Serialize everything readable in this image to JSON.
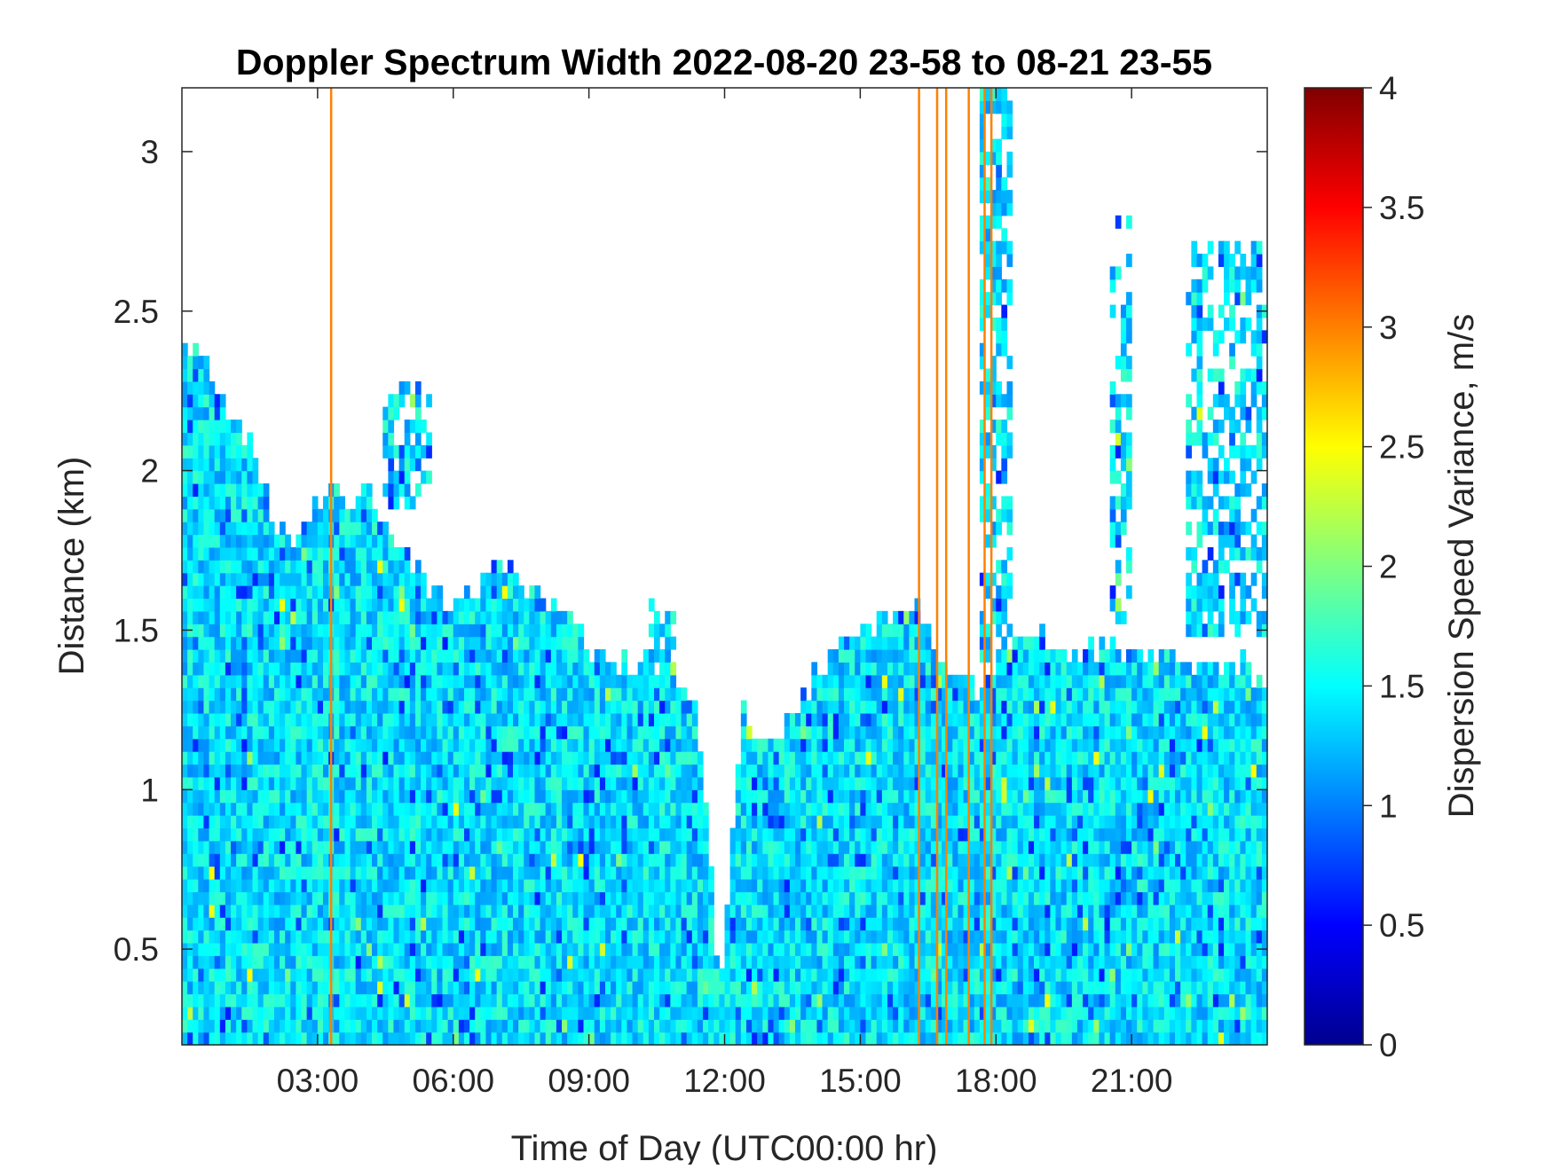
{
  "chart_data": {
    "type": "heatmap",
    "title": "Doppler Spectrum Width 2022-08-20 23-58 to 08-21 23-55",
    "xlabel": "Time of Day (UTC00:00 hr)",
    "ylabel": "Distance (km)",
    "colorbar_label": "Dispersion Speed Variance, m/s",
    "colormap": "jet",
    "xlim_hours": [
      0,
      24
    ],
    "ylim_km": [
      0.2,
      3.2
    ],
    "clim": [
      0,
      4
    ],
    "x_ticks": [
      {
        "value": 3,
        "label": "03:00"
      },
      {
        "value": 6,
        "label": "06:00"
      },
      {
        "value": 9,
        "label": "09:00"
      },
      {
        "value": 12,
        "label": "12:00"
      },
      {
        "value": 15,
        "label": "15:00"
      },
      {
        "value": 18,
        "label": "18:00"
      },
      {
        "value": 21,
        "label": "21:00"
      }
    ],
    "y_ticks": [
      {
        "value": 0.5,
        "label": "0.5"
      },
      {
        "value": 1,
        "label": "1"
      },
      {
        "value": 1.5,
        "label": "1.5"
      },
      {
        "value": 2,
        "label": "2"
      },
      {
        "value": 2.5,
        "label": "2.5"
      },
      {
        "value": 3,
        "label": "3"
      }
    ],
    "colorbar_ticks": [
      {
        "value": 0,
        "label": "0"
      },
      {
        "value": 0.5,
        "label": "0.5"
      },
      {
        "value": 1,
        "label": "1"
      },
      {
        "value": 1.5,
        "label": "1.5"
      },
      {
        "value": 2,
        "label": "2"
      },
      {
        "value": 2.5,
        "label": "2.5"
      },
      {
        "value": 3,
        "label": "3"
      },
      {
        "value": 3.5,
        "label": "3.5"
      },
      {
        "value": 4,
        "label": "4"
      }
    ],
    "data_top_km": [
      [
        0.0,
        2.4
      ],
      [
        0.5,
        2.35
      ],
      [
        1.0,
        2.2
      ],
      [
        1.5,
        2.1
      ],
      [
        2.0,
        1.85
      ],
      [
        2.5,
        1.8
      ],
      [
        3.0,
        1.9
      ],
      [
        3.5,
        1.92
      ],
      [
        4.0,
        1.95
      ],
      [
        4.5,
        1.85
      ],
      [
        5.0,
        1.72
      ],
      [
        5.5,
        1.62
      ],
      [
        6.0,
        1.58
      ],
      [
        6.5,
        1.62
      ],
      [
        7.0,
        1.7
      ],
      [
        7.5,
        1.65
      ],
      [
        8.0,
        1.62
      ],
      [
        8.5,
        1.55
      ],
      [
        9.0,
        1.45
      ],
      [
        9.5,
        1.4
      ],
      [
        10.0,
        1.4
      ],
      [
        10.5,
        1.38
      ],
      [
        11.0,
        1.35
      ],
      [
        11.4,
        1.25
      ],
      [
        11.7,
        0.8
      ],
      [
        11.85,
        0.4
      ],
      [
        12.0,
        0.5
      ],
      [
        12.2,
        0.95
      ],
      [
        12.4,
        1.3
      ],
      [
        12.7,
        1.15
      ],
      [
        13.0,
        1.15
      ],
      [
        13.5,
        1.25
      ],
      [
        14.0,
        1.35
      ],
      [
        14.5,
        1.45
      ],
      [
        15.0,
        1.5
      ],
      [
        15.5,
        1.55
      ],
      [
        16.0,
        1.6
      ],
      [
        16.5,
        1.5
      ],
      [
        17.0,
        1.35
      ],
      [
        17.5,
        1.3
      ],
      [
        18.0,
        1.4
      ],
      [
        18.5,
        1.5
      ],
      [
        19.0,
        1.48
      ],
      [
        19.5,
        1.45
      ],
      [
        20.0,
        1.42
      ],
      [
        20.5,
        1.45
      ],
      [
        21.0,
        1.45
      ],
      [
        21.5,
        1.42
      ],
      [
        22.0,
        1.4
      ],
      [
        22.5,
        1.4
      ],
      [
        23.0,
        1.4
      ],
      [
        23.5,
        1.38
      ],
      [
        24.0,
        1.35
      ]
    ],
    "typical_value_m_s": 1.4,
    "high_value_streaks_hours": [
      3.3,
      16.3,
      16.7,
      16.9,
      17.4,
      17.75,
      17.9
    ],
    "streak_value_m_s": 3.0,
    "upper_patches": [
      {
        "x": [
          17.6,
          18.3
        ],
        "y": [
          1.4,
          3.2
        ]
      },
      {
        "x": [
          22.2,
          24.0
        ],
        "y": [
          1.5,
          2.7
        ]
      },
      {
        "x": [
          20.5,
          21.0
        ],
        "y": [
          1.5,
          2.8
        ]
      },
      {
        "x": [
          4.5,
          5.5
        ],
        "y": [
          1.9,
          2.3
        ]
      },
      {
        "x": [
          10.3,
          10.9
        ],
        "y": [
          1.4,
          1.6
        ]
      }
    ]
  }
}
